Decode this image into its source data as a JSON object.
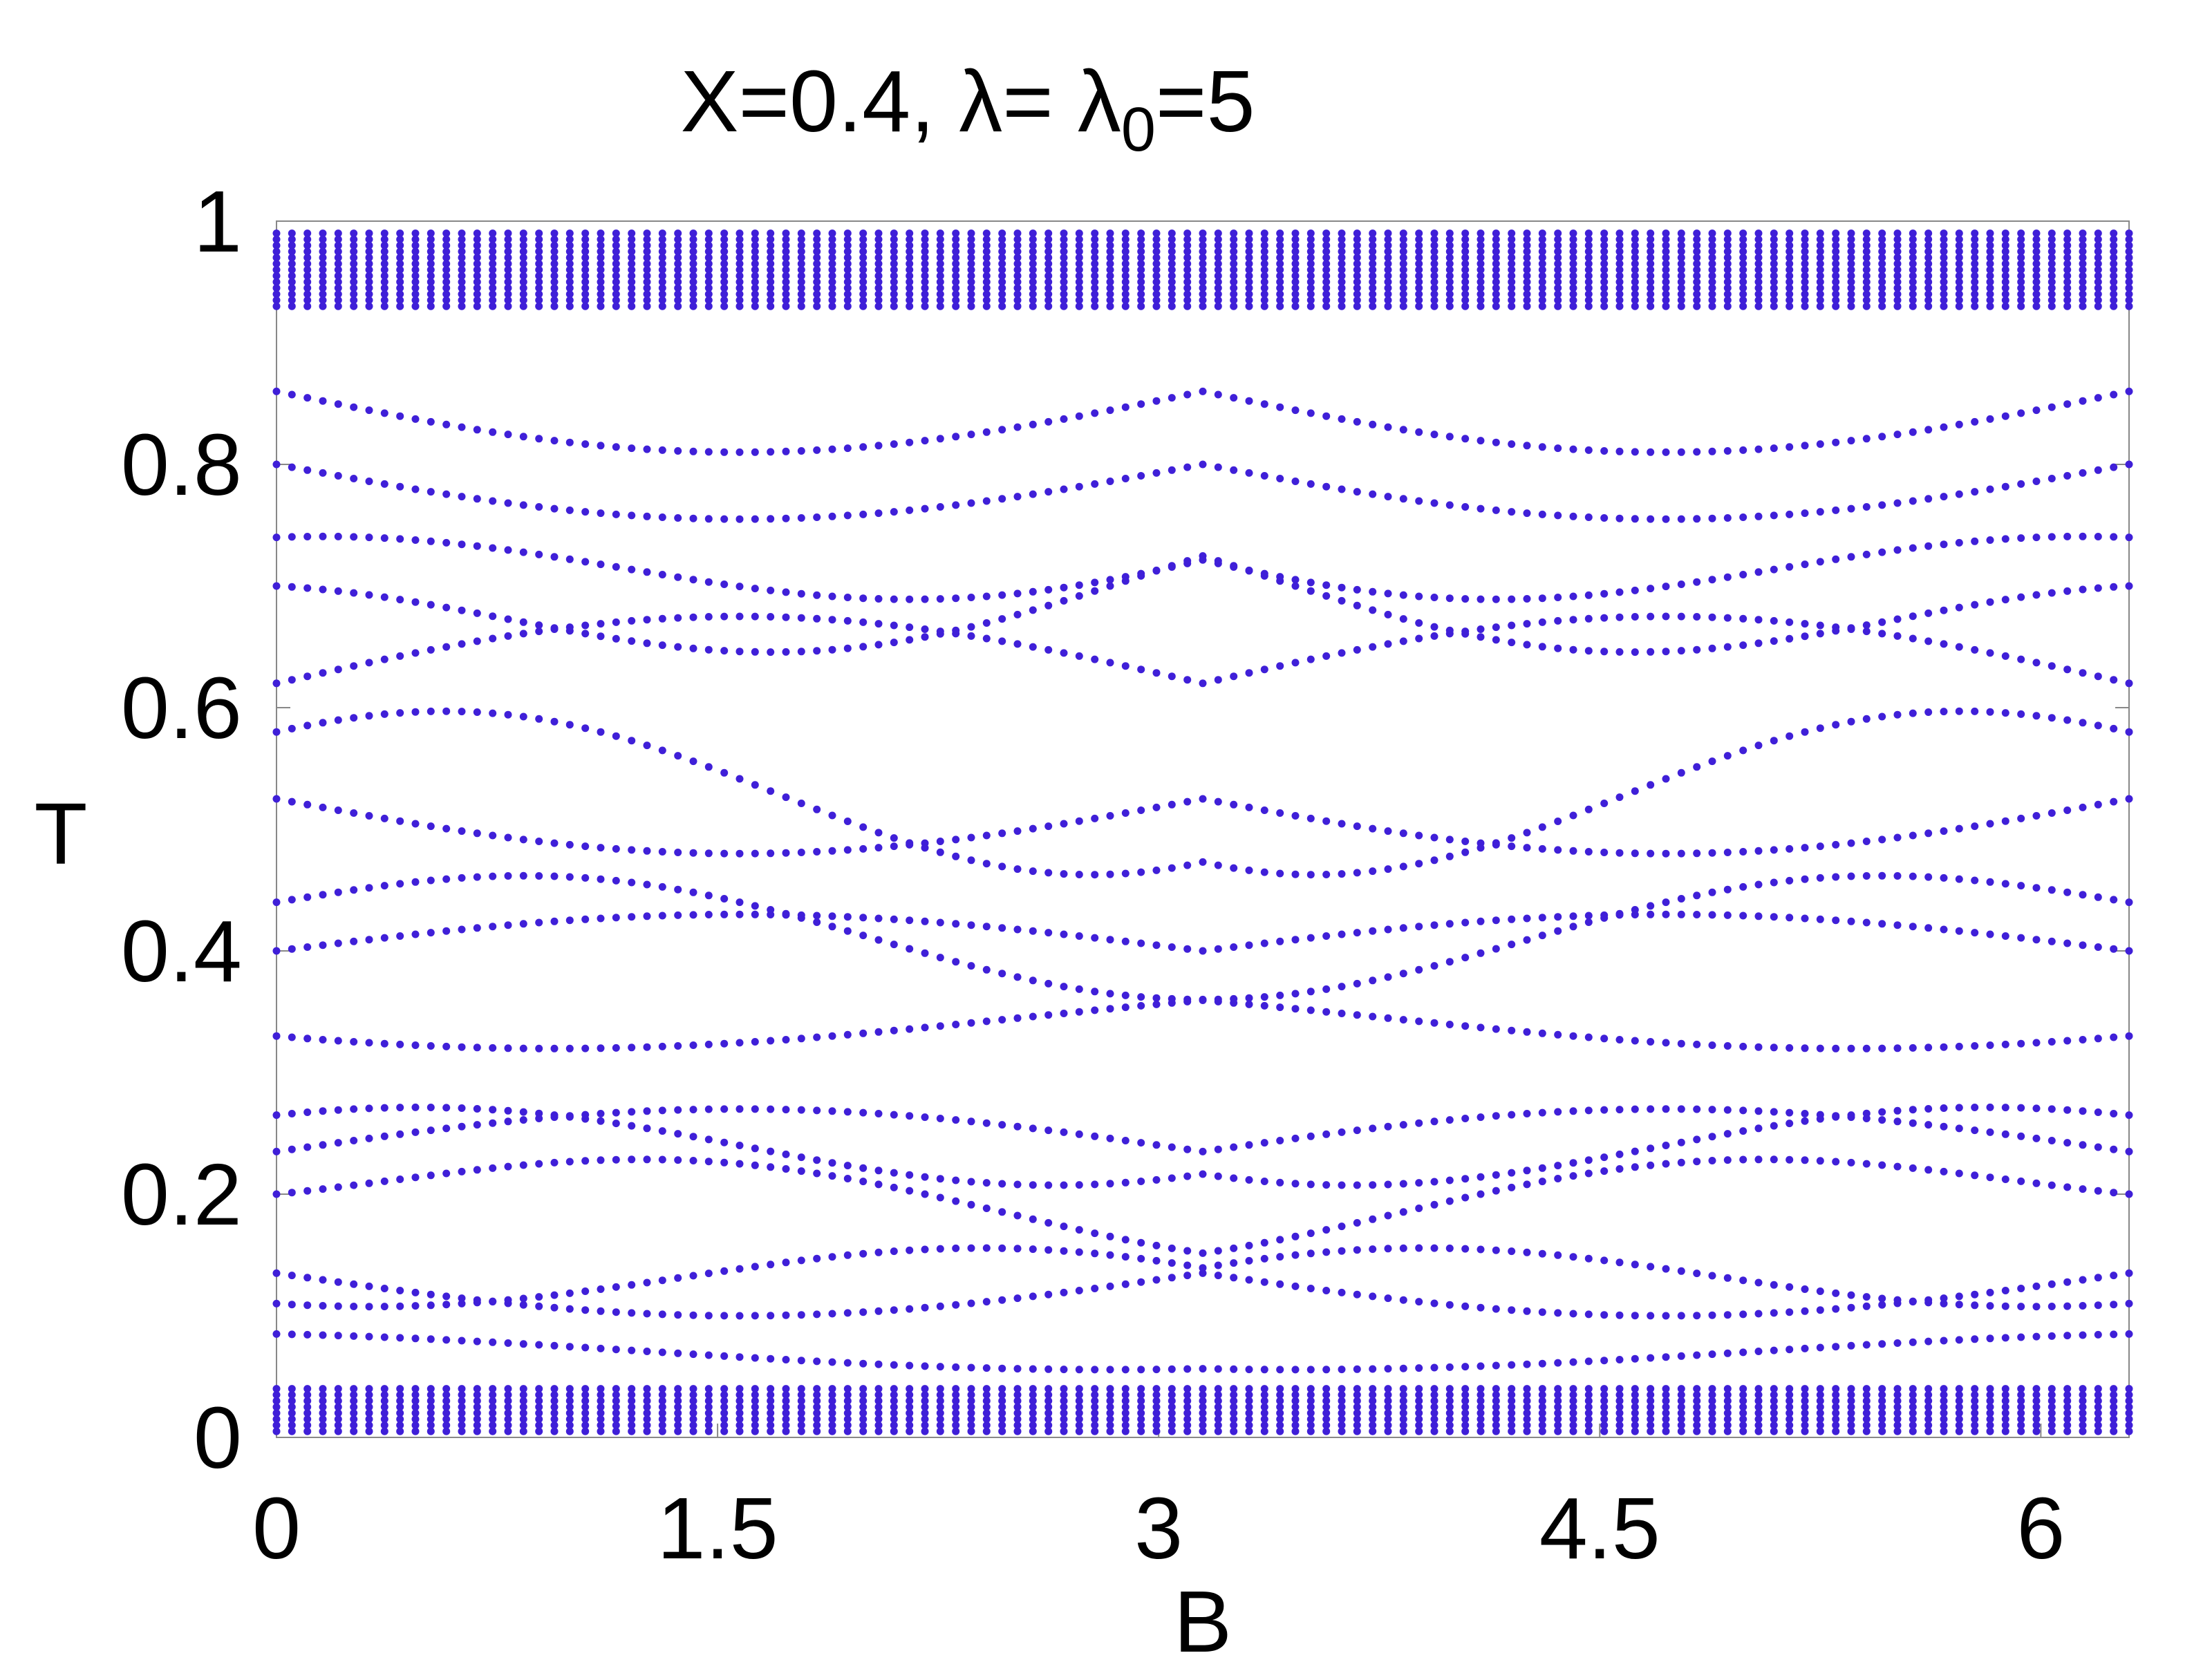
{
  "chart_data": {
    "type": "scatter",
    "title": {
      "prefix": "X=0.4, λ= λ",
      "subscript": "0",
      "suffix": "=5"
    },
    "xlabel": "B",
    "ylabel": "T",
    "xlim": [
      0,
      6.3
    ],
    "ylim": [
      0,
      1
    ],
    "x_ticks": [
      {
        "value": 0,
        "label": "0"
      },
      {
        "value": 1.5,
        "label": "1.5"
      },
      {
        "value": 3,
        "label": "3"
      },
      {
        "value": 4.5,
        "label": "4.5"
      },
      {
        "value": 6,
        "label": "6"
      }
    ],
    "y_ticks": [
      {
        "value": 0,
        "label": "0"
      },
      {
        "value": 0.2,
        "label": "0.2"
      },
      {
        "value": 0.4,
        "label": "0.4"
      },
      {
        "value": 0.6,
        "label": "0.6"
      },
      {
        "value": 0.8,
        "label": "0.8"
      },
      {
        "value": 1,
        "label": "1"
      }
    ],
    "grid": false,
    "marker_color": "#3f1fd8",
    "sampling": {
      "x_step": 0.0525,
      "x_count": 121
    },
    "series": [
      {
        "y": [
          0.99,
          0.985,
          0.98,
          0.975,
          0.97,
          0.965,
          0.96,
          0.955,
          0.95,
          0.945,
          0.94,
          0.935,
          0.93
        ]
      },
      {
        "y": [
          0.005,
          0.01,
          0.015,
          0.02,
          0.025,
          0.03,
          0.035,
          0.04
        ]
      },
      {
        "name": "",
        "y_model": "band-curves",
        "curves": [
          {
            "y0": 0.8,
            "amp": -0.09,
            "period": 6.3,
            "phase": 0
          },
          {
            "y0": 0.86,
            "amp": -0.1,
            "period": 6.3,
            "phase": 0
          },
          {
            "y0": 0.62,
            "amp": 0.11,
            "period": 6.3,
            "phase": 0
          },
          {
            "y0": 0.525,
            "amp": -0.09,
            "period": 6.3,
            "phase": 0
          },
          {
            "y0": 0.58,
            "amp": -0.12,
            "period": 3.15,
            "phase": 0.35
          },
          {
            "y0": 0.4,
            "amp": 0.06,
            "period": 6.3,
            "phase": 0
          },
          {
            "y0": 0.44,
            "amp": -0.08,
            "period": 3.15,
            "phase": 0.5
          },
          {
            "y0": 0.33,
            "amp": 0.05,
            "period": 6.3,
            "phase": 0.8
          },
          {
            "y0": 0.265,
            "amp": -0.06,
            "period": 3.15,
            "phase": 0.3
          },
          {
            "y0": 0.235,
            "amp": 0.07,
            "period": 6.3,
            "phase": 0
          },
          {
            "y0": 0.2,
            "amp": -0.06,
            "period": 3.15,
            "phase": 0.7
          },
          {
            "y0": 0.135,
            "amp": -0.07,
            "period": 6.3,
            "phase": 0
          },
          {
            "y0": 0.11,
            "amp": 0.05,
            "period": 3.15,
            "phase": 0.2
          },
          {
            "y0": 0.085,
            "amp": -0.03,
            "period": 6.3,
            "phase": 0.4
          },
          {
            "y0": 0.7,
            "amp": 0.08,
            "period": 3.15,
            "phase": 0.9
          },
          {
            "y0": 0.74,
            "amp": -0.06,
            "period": 3.15,
            "phase": 0.1
          }
        ]
      }
    ]
  }
}
